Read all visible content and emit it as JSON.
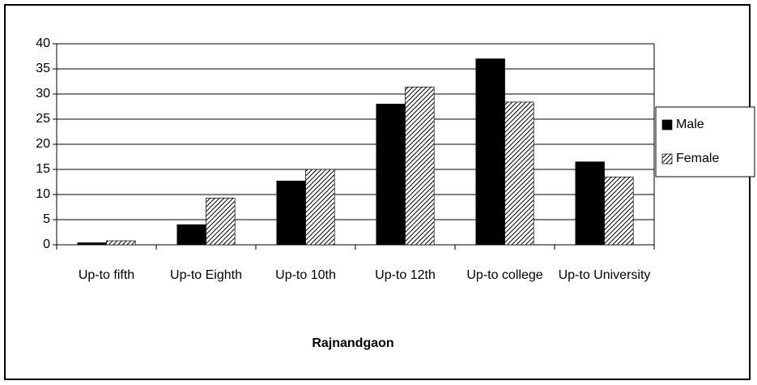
{
  "chart_data": {
    "type": "bar",
    "x_label": "Rajnandgaon",
    "categories": [
      "Up-to fifth",
      "Up-to Eighth",
      "Up-to 10th",
      "Up-to 12th",
      "Up-to college",
      "Up-to University"
    ],
    "series": [
      {
        "name": "Male",
        "color": "#000000",
        "values": [
          0.4,
          4,
          12.7,
          28,
          37,
          16.5
        ]
      },
      {
        "name": "Female",
        "color": "#000000",
        "pattern": "diagonal-hatch",
        "values": [
          0.8,
          9.3,
          15,
          31.4,
          28.4,
          13.5
        ]
      }
    ],
    "ylim": [
      0,
      40
    ],
    "yticks": [
      0,
      5,
      10,
      15,
      20,
      25,
      30,
      35,
      40
    ],
    "grid": true,
    "legend": "right"
  }
}
